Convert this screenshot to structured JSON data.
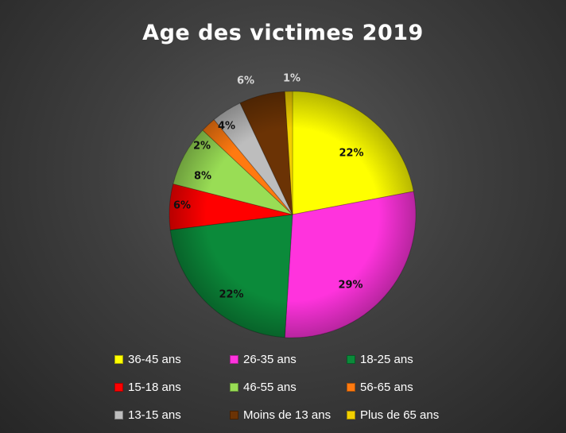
{
  "chart_data": {
    "type": "pie",
    "title": "Age des victimes 2019",
    "slices": [
      {
        "label": "36-45 ans",
        "value": 22,
        "data_label": "22%",
        "color": "#ffff00"
      },
      {
        "label": "26-35 ans",
        "value": 29,
        "data_label": "29%",
        "color": "#ff33dd"
      },
      {
        "label": "18-25 ans",
        "value": 22,
        "data_label": "22%",
        "color": "#0b8a3a"
      },
      {
        "label": "15-18 ans",
        "value": 6,
        "data_label": "6%",
        "color": "#ff0000"
      },
      {
        "label": "46-55 ans",
        "value": 8,
        "data_label": "8%",
        "color": "#99dd55"
      },
      {
        "label": "56-65 ans",
        "value": 2,
        "data_label": "2%",
        "color": "#ff7a10"
      },
      {
        "label": "13-15 ans",
        "value": 4,
        "data_label": "4%",
        "color": "#bdbdbd"
      },
      {
        "label": "Moins de 13 ans",
        "value": 6,
        "data_label": "6%",
        "color": "#6b3305"
      },
      {
        "label": "Plus de 65 ans",
        "value": 1,
        "data_label": "1%",
        "color": "#f2d000"
      }
    ],
    "legend_position": "bottom"
  }
}
